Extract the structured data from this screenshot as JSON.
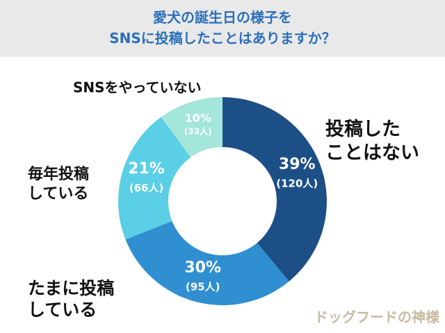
{
  "chart_data": {
    "type": "donut",
    "title": "愛犬の誕生日の様子を\nSNSに投稿したことはありますか？",
    "categories": [
      "投稿した\nことはない",
      "たまに投稿\nしている",
      "毎年投稿\nしている",
      "SNSをやっていない"
    ],
    "values": [
      39,
      30,
      21,
      10
    ],
    "value_labels": [
      "39%",
      "30%",
      "21%",
      "10%"
    ],
    "counts": [
      120,
      95,
      66,
      33
    ],
    "count_labels": [
      "(120人)",
      "(95人)",
      "(66人)",
      "(33人)"
    ],
    "colors": [
      "#1d4f87",
      "#2f8fd0",
      "#5acfe5",
      "#a3e6da"
    ],
    "watermark": "ドッグフードの神様"
  }
}
